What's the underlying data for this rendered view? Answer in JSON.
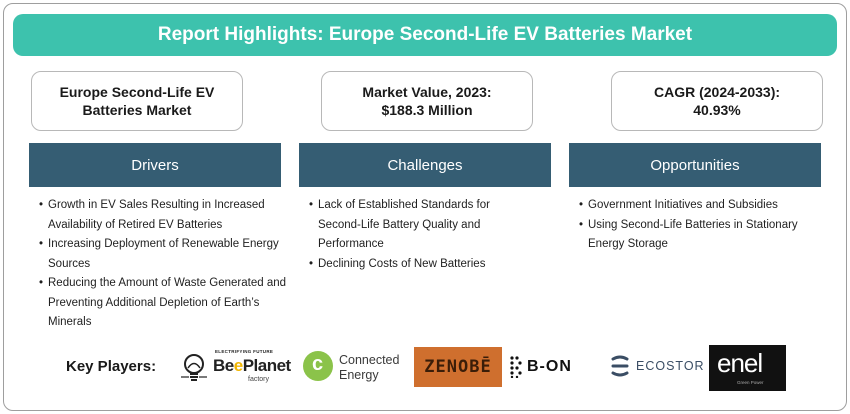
{
  "title": "Report Highlights: Europe Second-Life EV Batteries Market",
  "metrics": [
    {
      "line1": "Europe Second-Life EV",
      "line2": "Batteries Market"
    },
    {
      "line1": "Market Value, 2023:",
      "line2": "$188.3 Million"
    },
    {
      "line1": "CAGR (2024-2033):",
      "line2": "40.93%"
    }
  ],
  "columns": [
    {
      "heading": "Drivers",
      "items": [
        "Growth in EV Sales Resulting in Increased Availability of Retired EV Batteries",
        "Increasing Deployment of Renewable Energy Sources",
        "Reducing the Amount of Waste Generated and Preventing Additional Depletion of Earth’s Minerals"
      ]
    },
    {
      "heading": "Challenges",
      "items": [
        "Lack of Established Standards for Second-Life Battery Quality and Performance",
        "Declining Costs of New Batteries"
      ]
    },
    {
      "heading": "Opportunities",
      "items": [
        "Government Initiatives and Subsidies",
        "Using Second-Life Batteries in Stationary Energy Storage"
      ]
    }
  ],
  "key_players": {
    "label": "Key Players:",
    "logos": [
      {
        "tagline": "ELECTRIFYING FUTURE",
        "name_a": "Be",
        "name_b": "e",
        "name_c": "Planet",
        "sub": "factory",
        "icon": "lightbulb-icon"
      },
      {
        "line1": "Connected",
        "line2": "Energy",
        "icon": "c-circle-icon"
      },
      {
        "name": "ZENOBĒ"
      },
      {
        "name": "B-ON",
        "icon": "dot-grid-icon"
      },
      {
        "name": "ECOSTOR",
        "icon": "ecostor-mark-icon"
      },
      {
        "name": "enel",
        "sub": "Green Power"
      }
    ]
  },
  "colors": {
    "banner": "#3dc2ad",
    "column_header": "#355d73",
    "zenobe_bg": "#cf6f2e",
    "enel_bg": "#111111",
    "connected_energy_green": "#8bc34a"
  }
}
